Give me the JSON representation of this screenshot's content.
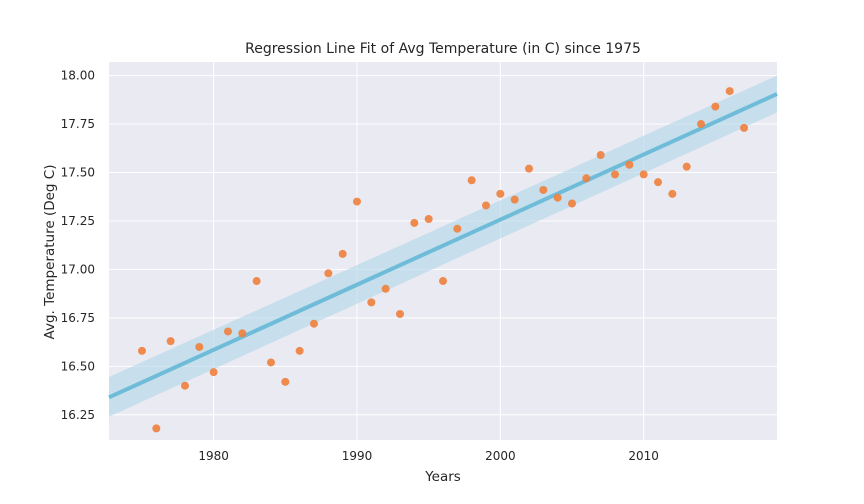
{
  "chart_data": {
    "type": "scatter",
    "title": "Regression Line Fit of Avg Temperature (in C) since 1975",
    "xlabel": "Years",
    "ylabel": "Avg. Temperature (Deg C)",
    "xlim": [
      1972.7,
      2019.3
    ],
    "ylim": [
      16.12,
      18.07
    ],
    "xticks": [
      1980,
      1990,
      2000,
      2010
    ],
    "yticks": [
      "16.25",
      "16.50",
      "16.75",
      "17.00",
      "17.25",
      "17.50",
      "17.75",
      "18.00"
    ],
    "grid": true,
    "colors": {
      "background": "#eaeaf2",
      "grid": "#ffffff",
      "points": "#f07f3c",
      "line": "#6fbcd9",
      "band": "#a9d3e8"
    },
    "points": {
      "x": [
        1975,
        1976,
        1977,
        1978,
        1979,
        1980,
        1981,
        1982,
        1983,
        1984,
        1985,
        1986,
        1987,
        1988,
        1989,
        1990,
        1991,
        1992,
        1993,
        1994,
        1995,
        1996,
        1997,
        1998,
        1999,
        2000,
        2001,
        2002,
        2003,
        2004,
        2005,
        2006,
        2007,
        2008,
        2009,
        2010,
        2011,
        2012,
        2013,
        2014,
        2015,
        2016,
        2017
      ],
      "y": [
        16.58,
        16.18,
        16.63,
        16.4,
        16.6,
        16.47,
        16.68,
        16.67,
        16.94,
        16.52,
        16.42,
        16.58,
        16.72,
        16.98,
        17.08,
        17.35,
        16.83,
        16.9,
        16.77,
        17.24,
        17.26,
        16.94,
        17.21,
        17.46,
        17.33,
        17.39,
        17.36,
        17.52,
        17.41,
        17.37,
        17.34,
        17.47,
        17.59,
        17.49,
        17.54,
        17.49,
        17.45,
        17.39,
        17.53,
        17.75,
        17.84,
        17.92,
        17.73
      ]
    },
    "regression": {
      "x": [
        1972.7,
        2019.3
      ],
      "y": [
        16.34,
        17.905
      ],
      "ci_lower": [
        16.24,
        17.81
      ],
      "ci_upper": [
        16.445,
        18.0
      ]
    }
  }
}
